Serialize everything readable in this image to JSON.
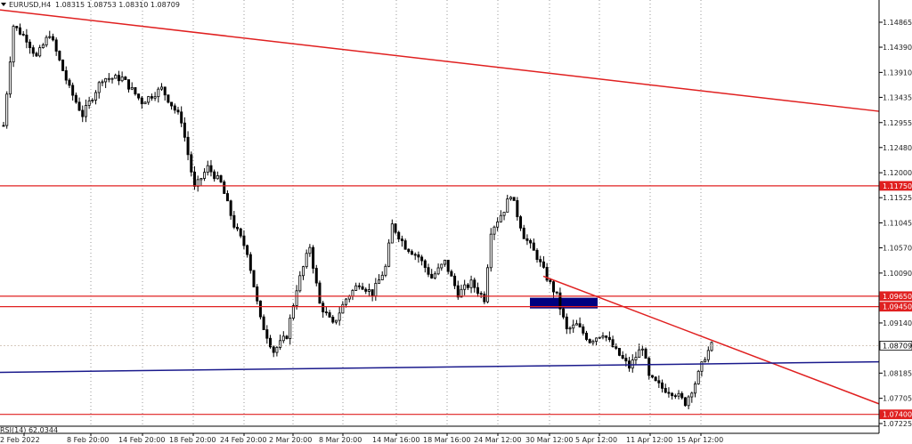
{
  "header": {
    "symbol_label": "EURUSD,H4",
    "ohlc": "1.08315 1.08753 1.08310 1.08709",
    "dropdown_icon": "triangle-down-icon"
  },
  "indicator": {
    "label": "RSI(14) 62.0344"
  },
  "colors": {
    "background": "#ffffff",
    "candle": "#000000",
    "level_line": "#e02020",
    "trend_line": "#e02020",
    "support_line": "#1a1a8c",
    "zone_fill": "#000080",
    "grid": "#9a9a9a",
    "price_tag_bg": "#e02020",
    "price_tag_text": "#ffffff",
    "current_price_bg": "#ffffff"
  },
  "chart_data": {
    "type": "candlestick",
    "symbol": "EURUSD",
    "timeframe": "H4",
    "ylim": [
      1.0746,
      1.151
    ],
    "y_ticks": [
      1.14865,
      1.1439,
      1.1391,
      1.13435,
      1.12955,
      1.1248,
      1.12,
      1.11525,
      1.11045,
      1.1057,
      1.1009,
      1.0914,
      1.08185,
      1.07705,
      1.07225
    ],
    "x_ticks": [
      "2 Feb 2022",
      "8 Feb 20:00",
      "14 Feb 20:00",
      "18 Feb 20:00",
      "24 Feb 20:00",
      "2 Mar 20:00",
      "8 Mar 20:00",
      "14 Mar 16:00",
      "18 Mar 16:00",
      "24 Mar 12:00",
      "30 Mar 12:00",
      "5 Apr 12:00",
      "11 Apr 12:00",
      "15 Apr 12:00"
    ],
    "price_tags": [
      {
        "value": 1.1175,
        "label": "1.11750"
      },
      {
        "value": 1.0965,
        "label": "1.09650"
      },
      {
        "value": 1.0945,
        "label": "1.09450"
      },
      {
        "value": 1.08709,
        "label": "1.08709"
      },
      {
        "value": 1.074,
        "label": "1.07400"
      }
    ],
    "horizontal_levels": [
      1.1175,
      1.0965,
      1.0945,
      1.074
    ],
    "current_price": 1.08709,
    "trendlines": [
      {
        "name": "upper-resistance",
        "x_start": "2 Feb 2022",
        "x_end": "end",
        "from": 1.151,
        "to": 1.1317
      },
      {
        "name": "short-resistance",
        "x_start": "5 Apr 12:00",
        "x_end": "end",
        "from": 1.1003,
        "to": 1.076
      },
      {
        "name": "support",
        "x_start": "2 Feb 2022",
        "x_end": "end",
        "from": 1.082,
        "to": 1.084
      }
    ],
    "zone": {
      "x_start": "30 Mar 12:00",
      "x_end": "5 Apr 12:00",
      "top": 1.0962,
      "bottom": 1.0945
    },
    "anchors": [
      {
        "t": 0,
        "p": 1.129
      },
      {
        "t": 3,
        "p": 1.148
      },
      {
        "t": 7,
        "p": 1.1455
      },
      {
        "t": 10,
        "p": 1.142
      },
      {
        "t": 14,
        "p": 1.1465
      },
      {
        "t": 20,
        "p": 1.136
      },
      {
        "t": 24,
        "p": 1.131
      },
      {
        "t": 30,
        "p": 1.138
      },
      {
        "t": 36,
        "p": 1.138
      },
      {
        "t": 42,
        "p": 1.1335
      },
      {
        "t": 48,
        "p": 1.136
      },
      {
        "t": 54,
        "p": 1.13
      },
      {
        "t": 58,
        "p": 1.117
      },
      {
        "t": 62,
        "p": 1.121
      },
      {
        "t": 66,
        "p": 1.118
      },
      {
        "t": 70,
        "p": 1.11
      },
      {
        "t": 74,
        "p": 1.105
      },
      {
        "t": 78,
        "p": 1.092
      },
      {
        "t": 82,
        "p": 1.086
      },
      {
        "t": 86,
        "p": 1.089
      },
      {
        "t": 89,
        "p": 1.098
      },
      {
        "t": 93,
        "p": 1.106
      },
      {
        "t": 96,
        "p": 1.095
      },
      {
        "t": 100,
        "p": 1.091
      },
      {
        "t": 104,
        "p": 1.096
      },
      {
        "t": 108,
        "p": 1.099
      },
      {
        "t": 112,
        "p": 1.097
      },
      {
        "t": 116,
        "p": 1.102
      },
      {
        "t": 118,
        "p": 1.11
      },
      {
        "t": 122,
        "p": 1.106
      },
      {
        "t": 126,
        "p": 1.104
      },
      {
        "t": 130,
        "p": 1.1
      },
      {
        "t": 134,
        "p": 1.103
      },
      {
        "t": 138,
        "p": 1.097
      },
      {
        "t": 142,
        "p": 1.099
      },
      {
        "t": 146,
        "p": 1.096
      },
      {
        "t": 148,
        "p": 1.109
      },
      {
        "t": 152,
        "p": 1.113
      },
      {
        "t": 154,
        "p": 1.116
      },
      {
        "t": 158,
        "p": 1.108
      },
      {
        "t": 162,
        "p": 1.104
      },
      {
        "t": 165,
        "p": 1.1
      },
      {
        "t": 168,
        "p": 1.0965
      },
      {
        "t": 171,
        "p": 1.09
      },
      {
        "t": 174,
        "p": 1.091
      },
      {
        "t": 178,
        "p": 1.088
      },
      {
        "t": 182,
        "p": 1.0895
      },
      {
        "t": 186,
        "p": 1.086
      },
      {
        "t": 190,
        "p": 1.083
      },
      {
        "t": 194,
        "p": 1.087
      },
      {
        "t": 196,
        "p": 1.081
      },
      {
        "t": 200,
        "p": 1.079
      },
      {
        "t": 204,
        "p": 1.078
      },
      {
        "t": 207,
        "p": 1.0762
      },
      {
        "t": 210,
        "p": 1.08
      },
      {
        "t": 213,
        "p": 1.085
      },
      {
        "t": 215,
        "p": 1.0871
      }
    ],
    "candle_count": 216
  }
}
